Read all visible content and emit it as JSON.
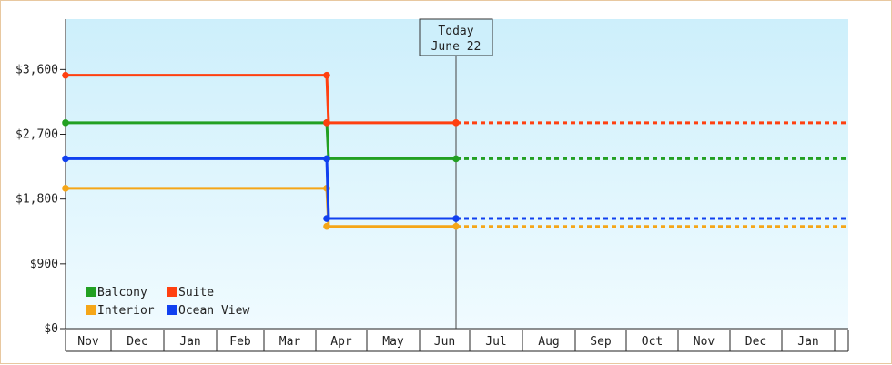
{
  "chart_data": {
    "type": "line",
    "y_ticks": [
      0,
      900,
      1800,
      2700,
      3600
    ],
    "y_tick_labels": [
      "$0",
      "$900",
      "$1,800",
      "$2,700",
      "$3,600"
    ],
    "ylim": [
      0,
      4300
    ],
    "month_labels": [
      "Nov",
      "Dec",
      "Jan",
      "Feb",
      "Mar",
      "Apr",
      "May",
      "Jun",
      "Jul",
      "Aug",
      "Sep",
      "Oct",
      "Nov",
      "Dec",
      "Jan"
    ],
    "today": {
      "line1": "Today",
      "line2": "June 22"
    },
    "grid": false,
    "legend_position": "bottom-left",
    "series": [
      {
        "name": "Balcony",
        "color": "#22a022",
        "before": 2860,
        "after": 2360
      },
      {
        "name": "Suite",
        "color": "#ff4010",
        "before": 3520,
        "after": 2860
      },
      {
        "name": "Interior",
        "color": "#f5a618",
        "before": 1950,
        "after": 1420
      },
      {
        "name": "Ocean View",
        "color": "#1040f0",
        "before": 2360,
        "after": 1530
      }
    ]
  }
}
